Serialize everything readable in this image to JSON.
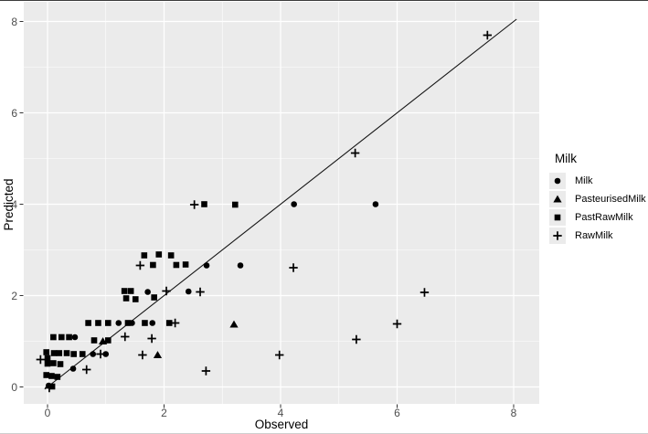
{
  "figure": {
    "xlabel": "Observed",
    "ylabel": "Predicted"
  },
  "legend": {
    "title": "Milk",
    "items": [
      {
        "label": "Milk",
        "marker": "circle"
      },
      {
        "label": "PasteurisedMilk",
        "marker": "triangle"
      },
      {
        "label": "PastRawMilk",
        "marker": "square"
      },
      {
        "label": "RawMilk",
        "marker": "plus"
      }
    ]
  },
  "chart_data": {
    "type": "scatter",
    "title": "",
    "xlabel": "Observed",
    "ylabel": "Predicted",
    "xlim": [
      -0.41,
      8.44
    ],
    "ylim": [
      -0.39,
      8.41
    ],
    "x_ticks": [
      0,
      2,
      4,
      6,
      8
    ],
    "y_ticks": [
      0,
      2,
      4,
      6,
      8
    ],
    "x_minor_ticks": [
      1,
      3,
      5,
      7
    ],
    "y_minor_ticks": [
      1,
      3,
      5,
      7
    ],
    "grid": "white major and minor gridlines on gray panel",
    "legend_position": "right",
    "legend_title": "Milk",
    "panel_bg": "#ebebeb",
    "grid_color": "#ffffff",
    "marker_color": "#000000",
    "tick_label_color": "#4d4d4d",
    "identity_line": {
      "x1": -0.05,
      "y1": -0.05,
      "x2": 8.05,
      "y2": 8.05
    },
    "series": [
      {
        "name": "Milk",
        "marker": "circle",
        "points": [
          [
            0.02,
            0.03
          ],
          [
            0.44,
            0.4
          ],
          [
            0.47,
            1.09
          ],
          [
            0.78,
            0.72
          ],
          [
            1.0,
            0.72
          ],
          [
            1.22,
            1.4
          ],
          [
            1.45,
            1.4
          ],
          [
            1.8,
            1.4
          ],
          [
            1.72,
            2.08
          ],
          [
            2.42,
            2.09
          ],
          [
            2.73,
            2.66
          ],
          [
            3.31,
            2.66
          ],
          [
            4.23,
            4.0
          ],
          [
            5.63,
            4.0
          ]
        ]
      },
      {
        "name": "PasteurisedMilk",
        "marker": "triangle",
        "points": [
          [
            0.95,
            1.0
          ],
          [
            1.89,
            0.7
          ],
          [
            3.2,
            1.37
          ]
        ]
      },
      {
        "name": "PastRawMilk",
        "marker": "square",
        "points": [
          [
            0.08,
            0.01
          ],
          [
            -0.02,
            0.26
          ],
          [
            0.07,
            0.24
          ],
          [
            0.17,
            0.22
          ],
          [
            0.0,
            0.51
          ],
          [
            0.1,
            0.52
          ],
          [
            0.22,
            0.5
          ],
          [
            0.0,
            0.63
          ],
          [
            -0.02,
            0.76
          ],
          [
            0.11,
            0.74
          ],
          [
            0.2,
            0.74
          ],
          [
            0.33,
            0.74
          ],
          [
            0.45,
            0.72
          ],
          [
            0.6,
            0.72
          ],
          [
            0.1,
            1.09
          ],
          [
            0.24,
            1.09
          ],
          [
            0.37,
            1.09
          ],
          [
            0.8,
            1.02
          ],
          [
            1.04,
            1.02
          ],
          [
            0.7,
            1.4
          ],
          [
            0.87,
            1.4
          ],
          [
            1.04,
            1.4
          ],
          [
            1.38,
            1.4
          ],
          [
            1.67,
            1.4
          ],
          [
            2.09,
            1.4
          ],
          [
            1.35,
            1.94
          ],
          [
            1.51,
            1.92
          ],
          [
            1.83,
            1.96
          ],
          [
            1.32,
            2.1
          ],
          [
            1.43,
            2.1
          ],
          [
            1.81,
            2.67
          ],
          [
            2.21,
            2.67
          ],
          [
            2.37,
            2.68
          ],
          [
            1.66,
            2.88
          ],
          [
            1.91,
            2.9
          ],
          [
            2.12,
            2.88
          ],
          [
            2.69,
            4.0
          ],
          [
            3.22,
            3.99
          ]
        ]
      },
      {
        "name": "RawMilk",
        "marker": "plus",
        "points": [
          [
            0.03,
            -0.02
          ],
          [
            -0.12,
            0.6
          ],
          [
            0.67,
            0.38
          ],
          [
            0.91,
            0.72
          ],
          [
            1.63,
            0.7
          ],
          [
            1.33,
            1.1
          ],
          [
            1.79,
            1.06
          ],
          [
            2.19,
            1.4
          ],
          [
            2.04,
            2.1
          ],
          [
            2.62,
            2.08
          ],
          [
            1.59,
            2.66
          ],
          [
            2.72,
            0.35
          ],
          [
            3.98,
            0.7
          ],
          [
            4.22,
            2.61
          ],
          [
            5.3,
            1.04
          ],
          [
            6.0,
            1.38
          ],
          [
            6.47,
            2.07
          ],
          [
            2.52,
            3.99
          ],
          [
            5.28,
            5.12
          ],
          [
            7.55,
            7.7
          ]
        ]
      }
    ]
  }
}
